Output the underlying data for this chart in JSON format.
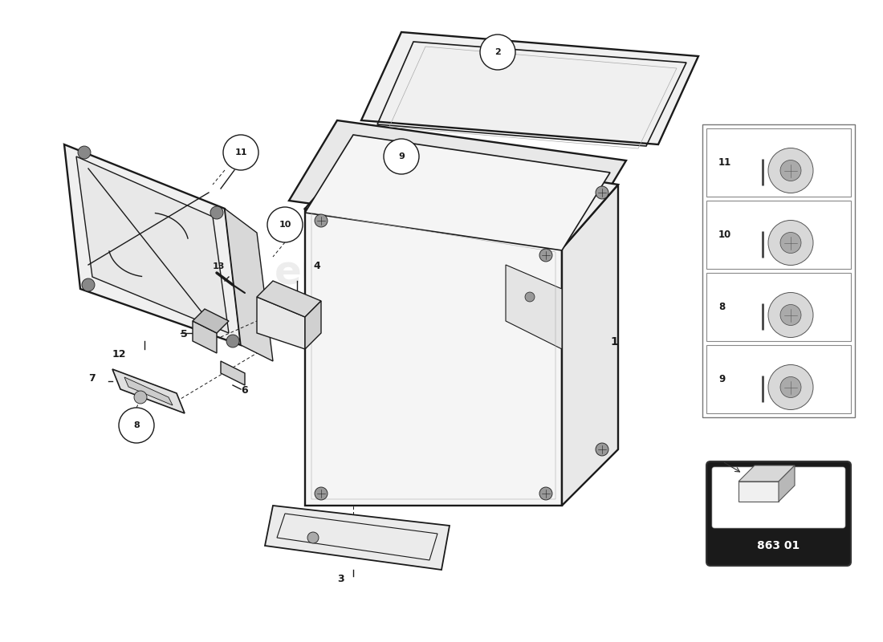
{
  "background_color": "#ffffff",
  "line_color": "#1a1a1a",
  "part_code": "863 01",
  "fastener_labels": [
    "11",
    "10",
    "8",
    "9"
  ],
  "watermark_color": "#c8c8c8",
  "watermark_alpha": 0.3
}
